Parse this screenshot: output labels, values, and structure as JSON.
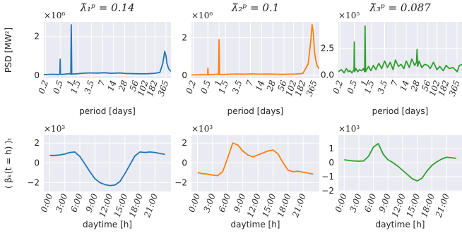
{
  "chart_data": [
    {
      "type": "line",
      "title": "λ̃₁ᵖ = 0.14",
      "xlabel": "period [days]",
      "ylabel": "PSD [MW²]",
      "multiplier": "×10⁶",
      "color": "#1f77b4",
      "x_scale": "log",
      "x_ticks": [
        0.2,
        0.5,
        1,
        1.5,
        3.5,
        7,
        14,
        28,
        56,
        102,
        182,
        365
      ],
      "x_tick_labels": [
        "0.2",
        "0.5",
        "1",
        "1.5",
        "3.5",
        "7",
        "14",
        "28",
        "56",
        "102",
        "182",
        "365"
      ],
      "xlim": [
        0.18,
        500
      ],
      "y_ticks": [
        0,
        2
      ],
      "y_tick_labels": [
        "0",
        "2"
      ],
      "ylim": [
        -0.15,
        2.75
      ],
      "x": [
        0.18,
        0.3,
        0.45,
        0.49,
        0.5,
        0.51,
        0.55,
        0.7,
        0.9,
        0.97,
        1.0,
        1.03,
        1.1,
        1.5,
        2,
        3,
        5,
        8,
        12,
        20,
        30,
        50,
        80,
        120,
        180,
        250,
        300,
        340,
        365,
        390,
        430,
        470,
        500
      ],
      "y": [
        0.03,
        0.05,
        0.04,
        0.05,
        0.82,
        0.05,
        0.04,
        0.06,
        0.08,
        0.05,
        2.6,
        0.05,
        0.06,
        0.08,
        0.1,
        0.12,
        0.11,
        0.13,
        0.1,
        0.12,
        0.09,
        0.08,
        0.07,
        0.08,
        0.1,
        0.14,
        0.6,
        1.23,
        1.0,
        0.6,
        0.35,
        0.25,
        0.2
      ]
    },
    {
      "type": "line",
      "title": "λ̃₂ᵖ = 0.1",
      "xlabel": "period [days]",
      "ylabel": "",
      "multiplier": "×10⁶",
      "color": "#ff7f0e",
      "x_scale": "log",
      "x_ticks": [
        0.2,
        0.5,
        1,
        1.5,
        3.5,
        7,
        14,
        28,
        56,
        102,
        182,
        365
      ],
      "x_tick_labels": [
        "0.2",
        "0.5",
        "1",
        "1.5",
        "3.5",
        "7",
        "14",
        "28",
        "56",
        "102",
        "182",
        "365"
      ],
      "xlim": [
        0.18,
        500
      ],
      "y_ticks": [
        0,
        2
      ],
      "y_tick_labels": [
        "0",
        "2"
      ],
      "ylim": [
        -0.15,
        2.85
      ],
      "x": [
        0.18,
        0.3,
        0.45,
        0.49,
        0.5,
        0.51,
        0.55,
        0.7,
        0.9,
        0.97,
        1.0,
        1.03,
        1.1,
        1.5,
        2,
        3,
        5,
        8,
        12,
        20,
        30,
        50,
        80,
        120,
        180,
        250,
        290,
        320,
        345,
        370,
        400,
        440,
        500
      ],
      "y": [
        0.02,
        0.03,
        0.03,
        0.03,
        0.38,
        0.03,
        0.03,
        0.04,
        0.06,
        0.04,
        1.9,
        0.04,
        0.04,
        0.05,
        0.06,
        0.07,
        0.06,
        0.08,
        0.06,
        0.07,
        0.06,
        0.05,
        0.06,
        0.07,
        0.1,
        0.6,
        1.7,
        2.7,
        2.3,
        1.3,
        0.8,
        0.5,
        0.35
      ]
    },
    {
      "type": "line",
      "title": "λ̃₃ᵖ = 0.087",
      "xlabel": "period [days]",
      "ylabel": "",
      "multiplier": "×10⁵",
      "color": "#2ca02c",
      "x_scale": "log",
      "x_ticks": [
        0.2,
        0.5,
        1,
        1.5,
        3.5,
        7,
        14,
        28,
        56,
        102,
        182,
        365
      ],
      "x_tick_labels": [
        "0.2",
        "0.5",
        "1",
        "1.5",
        "3.5",
        "7",
        "14",
        "28",
        "56",
        "102",
        "182",
        "365"
      ],
      "xlim": [
        0.18,
        500
      ],
      "y_ticks": [
        0,
        2.5
      ],
      "y_tick_labels": [
        "0.0",
        "2.5"
      ],
      "ylim": [
        -0.3,
        5.0
      ],
      "x": [
        0.18,
        0.22,
        0.26,
        0.3,
        0.34,
        0.38,
        0.43,
        0.49,
        0.5,
        0.51,
        0.56,
        0.62,
        0.7,
        0.8,
        0.9,
        0.97,
        1.0,
        1.03,
        1.1,
        1.25,
        1.45,
        1.7,
        2,
        2.4,
        2.9,
        3.5,
        4.2,
        5,
        6,
        7,
        8.5,
        10,
        12,
        14,
        17,
        20,
        24,
        27,
        28,
        29,
        32,
        38,
        45,
        56,
        65,
        80,
        100,
        120,
        150,
        180,
        220,
        280,
        365,
        420,
        500
      ],
      "y": [
        0.3,
        0.5,
        0.2,
        0.6,
        0.3,
        0.4,
        0.2,
        0.5,
        3.1,
        0.3,
        0.6,
        0.3,
        0.5,
        0.4,
        0.6,
        0.3,
        4.6,
        0.3,
        0.5,
        0.8,
        0.4,
        0.9,
        0.5,
        1.1,
        0.6,
        1.3,
        0.7,
        1.2,
        0.5,
        1.4,
        0.8,
        1.0,
        0.6,
        1.3,
        0.7,
        1.5,
        0.9,
        1.2,
        2.4,
        0.8,
        1.3,
        0.7,
        1.0,
        0.9,
        0.6,
        1.2,
        0.5,
        0.8,
        0.4,
        0.9,
        0.6,
        0.7,
        0.3,
        0.9,
        1.0
      ]
    },
    {
      "type": "line",
      "title": "",
      "xlabel": "daytime [h]",
      "ylabel": "⟨ βₖ(t = h) ⟩ₜ",
      "multiplier": "×10³",
      "color": "#1f77b4",
      "x_ticks": [
        0,
        3,
        6,
        9,
        12,
        15,
        18,
        21
      ],
      "x_tick_labels": [
        "0:00",
        "3:00",
        "6:00",
        "9:00",
        "12:00",
        "15:00",
        "18:00",
        "21:00"
      ],
      "xlim": [
        -1.2,
        24.2
      ],
      "y_ticks": [
        -2,
        0,
        2
      ],
      "y_tick_labels": [
        "−2",
        "0",
        "2"
      ],
      "ylim": [
        -2.9,
        2.8
      ],
      "x": [
        0,
        1,
        2,
        3,
        4,
        5,
        6,
        7,
        8,
        9,
        10,
        11,
        12,
        13,
        14,
        15,
        16,
        17,
        18,
        19,
        20,
        21,
        22,
        23
      ],
      "y": [
        0.75,
        0.75,
        0.8,
        0.9,
        1.05,
        1.1,
        0.65,
        -0.1,
        -0.9,
        -1.6,
        -2.0,
        -2.2,
        -2.3,
        -2.25,
        -1.9,
        -1.1,
        -0.2,
        0.7,
        1.1,
        1.05,
        1.1,
        1.05,
        0.95,
        0.85
      ]
    },
    {
      "type": "line",
      "title": "",
      "xlabel": "daytime [h]",
      "ylabel": "",
      "multiplier": "×10³",
      "color": "#ff7f0e",
      "x_ticks": [
        0,
        3,
        6,
        9,
        12,
        15,
        18,
        21
      ],
      "x_tick_labels": [
        "0:00",
        "3:00",
        "6:00",
        "9:00",
        "12:00",
        "15:00",
        "18:00",
        "21:00"
      ],
      "xlim": [
        -1.2,
        24.2
      ],
      "y_ticks": [
        -2,
        0,
        2
      ],
      "y_tick_labels": [
        "−2",
        "0",
        "2"
      ],
      "ylim": [
        -2.9,
        2.8
      ],
      "x": [
        0,
        1,
        2,
        3,
        4,
        5,
        6,
        7,
        8,
        9,
        10,
        11,
        12,
        13,
        14,
        15,
        16,
        17,
        18,
        19,
        20,
        21,
        22,
        23
      ],
      "y": [
        -1.0,
        -1.1,
        -1.15,
        -1.25,
        -1.3,
        -0.9,
        0.5,
        2.0,
        1.8,
        1.2,
        0.8,
        0.6,
        0.8,
        1.0,
        1.2,
        1.3,
        0.9,
        0.0,
        -0.75,
        -0.9,
        -0.85,
        -0.95,
        -1.05,
        -1.15
      ]
    },
    {
      "type": "line",
      "title": "",
      "xlabel": "daytime [h]",
      "ylabel": "",
      "multiplier": "×10³",
      "color": "#2ca02c",
      "x_ticks": [
        0,
        3,
        6,
        9,
        12,
        15,
        18,
        21
      ],
      "x_tick_labels": [
        "0:00",
        "3:00",
        "6:00",
        "9:00",
        "12:00",
        "15:00",
        "18:00",
        "21:00"
      ],
      "xlim": [
        -1.2,
        24.2
      ],
      "y_ticks": [
        -2,
        -1,
        0,
        1
      ],
      "y_tick_labels": [
        "−2",
        "−1",
        "0",
        "1"
      ],
      "ylim": [
        -2.05,
        1.95
      ],
      "x": [
        0,
        1,
        2,
        3,
        4,
        5,
        6,
        7,
        8,
        9,
        10,
        11,
        12,
        13,
        14,
        15,
        16,
        17,
        18,
        19,
        20,
        21,
        22,
        23
      ],
      "y": [
        0.2,
        0.15,
        0.12,
        0.1,
        0.12,
        0.45,
        1.1,
        1.35,
        0.6,
        0.2,
        0.0,
        -0.25,
        -0.55,
        -0.85,
        -1.15,
        -1.3,
        -1.1,
        -0.6,
        -0.2,
        0.05,
        0.25,
        0.38,
        0.35,
        0.3
      ]
    }
  ]
}
